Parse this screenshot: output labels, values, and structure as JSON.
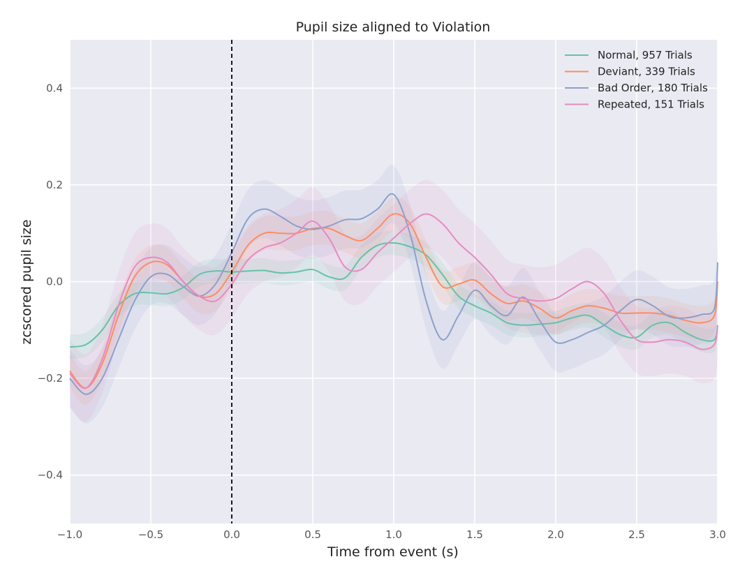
{
  "chart_data": {
    "type": "line",
    "title": "Pupil size aligned to Violation",
    "xlabel": "Time from event (s)",
    "ylabel": "zcscored pupil size",
    "xlim": [
      -1.0,
      3.0
    ],
    "ylim": [
      -0.5,
      0.5
    ],
    "x_ticks": [
      -1.0,
      -0.5,
      0.0,
      0.5,
      1.0,
      1.5,
      2.0,
      2.5,
      3.0
    ],
    "x_tick_labels": [
      "−1.0",
      "−0.5",
      "0.0",
      "0.5",
      "1.0",
      "1.5",
      "2.0",
      "2.5",
      "3.0"
    ],
    "y_ticks": [
      -0.4,
      -0.2,
      0.0,
      0.2,
      0.4
    ],
    "y_tick_labels": [
      "−0.4",
      "−0.2",
      "0.0",
      "0.2",
      "0.4"
    ],
    "grid": true,
    "legend_position": "top-right",
    "event_line": {
      "x": 0.0,
      "style": "dashed",
      "color": "#000000"
    },
    "series": [
      {
        "name": "Normal, 957 Trials",
        "color": "#66c2a5",
        "ci_halfwidth": 0.025,
        "points": [
          [
            -1.0,
            -0.135
          ],
          [
            -0.9,
            -0.13
          ],
          [
            -0.8,
            -0.1
          ],
          [
            -0.7,
            -0.05
          ],
          [
            -0.6,
            -0.025
          ],
          [
            -0.5,
            -0.023
          ],
          [
            -0.4,
            -0.025
          ],
          [
            -0.3,
            -0.012
          ],
          [
            -0.2,
            0.015
          ],
          [
            -0.1,
            0.022
          ],
          [
            0.0,
            0.02
          ],
          [
            0.1,
            0.022
          ],
          [
            0.2,
            0.023
          ],
          [
            0.3,
            0.018
          ],
          [
            0.4,
            0.02
          ],
          [
            0.5,
            0.025
          ],
          [
            0.6,
            0.01
          ],
          [
            0.7,
            0.008
          ],
          [
            0.8,
            0.05
          ],
          [
            0.9,
            0.075
          ],
          [
            1.0,
            0.08
          ],
          [
            1.1,
            0.072
          ],
          [
            1.2,
            0.055
          ],
          [
            1.3,
            0.015
          ],
          [
            1.4,
            -0.03
          ],
          [
            1.5,
            -0.05
          ],
          [
            1.6,
            -0.065
          ],
          [
            1.7,
            -0.085
          ],
          [
            1.8,
            -0.09
          ],
          [
            1.9,
            -0.088
          ],
          [
            2.0,
            -0.085
          ],
          [
            2.1,
            -0.075
          ],
          [
            2.2,
            -0.07
          ],
          [
            2.3,
            -0.09
          ],
          [
            2.4,
            -0.11
          ],
          [
            2.5,
            -0.115
          ],
          [
            2.6,
            -0.09
          ],
          [
            2.7,
            -0.085
          ],
          [
            2.8,
            -0.105
          ],
          [
            2.9,
            -0.12
          ],
          [
            2.98,
            -0.12
          ],
          [
            3.0,
            -0.09
          ]
        ]
      },
      {
        "name": "Deviant, 339 Trials",
        "color": "#fc8d62",
        "ci_halfwidth": 0.035,
        "points": [
          [
            -1.0,
            -0.185
          ],
          [
            -0.9,
            -0.22
          ],
          [
            -0.8,
            -0.17
          ],
          [
            -0.7,
            -0.07
          ],
          [
            -0.6,
            0.01
          ],
          [
            -0.5,
            0.04
          ],
          [
            -0.4,
            0.035
          ],
          [
            -0.3,
            0.0
          ],
          [
            -0.2,
            -0.03
          ],
          [
            -0.1,
            -0.025
          ],
          [
            0.0,
            0.02
          ],
          [
            0.1,
            0.075
          ],
          [
            0.2,
            0.1
          ],
          [
            0.3,
            0.1
          ],
          [
            0.4,
            0.1
          ],
          [
            0.5,
            0.11
          ],
          [
            0.6,
            0.11
          ],
          [
            0.7,
            0.095
          ],
          [
            0.8,
            0.085
          ],
          [
            0.9,
            0.11
          ],
          [
            1.0,
            0.14
          ],
          [
            1.1,
            0.12
          ],
          [
            1.2,
            0.05
          ],
          [
            1.3,
            -0.01
          ],
          [
            1.4,
            -0.005
          ],
          [
            1.5,
            0.003
          ],
          [
            1.6,
            -0.025
          ],
          [
            1.7,
            -0.045
          ],
          [
            1.8,
            -0.04
          ],
          [
            1.9,
            -0.055
          ],
          [
            2.0,
            -0.075
          ],
          [
            2.1,
            -0.06
          ],
          [
            2.2,
            -0.05
          ],
          [
            2.3,
            -0.055
          ],
          [
            2.4,
            -0.065
          ],
          [
            2.5,
            -0.065
          ],
          [
            2.6,
            -0.065
          ],
          [
            2.7,
            -0.07
          ],
          [
            2.8,
            -0.08
          ],
          [
            2.9,
            -0.085
          ],
          [
            2.98,
            -0.07
          ],
          [
            3.0,
            0.0
          ]
        ]
      },
      {
        "name": "Bad Order, 180 Trials",
        "color": "#8da0cb",
        "ci_halfwidth": 0.06,
        "points": [
          [
            -1.0,
            -0.2
          ],
          [
            -0.9,
            -0.233
          ],
          [
            -0.8,
            -0.2
          ],
          [
            -0.7,
            -0.12
          ],
          [
            -0.6,
            -0.04
          ],
          [
            -0.5,
            0.01
          ],
          [
            -0.4,
            0.015
          ],
          [
            -0.3,
            -0.01
          ],
          [
            -0.2,
            -0.03
          ],
          [
            -0.1,
            -0.005
          ],
          [
            0.0,
            0.06
          ],
          [
            0.1,
            0.13
          ],
          [
            0.2,
            0.15
          ],
          [
            0.3,
            0.135
          ],
          [
            0.4,
            0.115
          ],
          [
            0.5,
            0.108
          ],
          [
            0.6,
            0.115
          ],
          [
            0.7,
            0.128
          ],
          [
            0.8,
            0.13
          ],
          [
            0.9,
            0.15
          ],
          [
            1.0,
            0.18
          ],
          [
            1.1,
            0.1
          ],
          [
            1.2,
            -0.04
          ],
          [
            1.3,
            -0.12
          ],
          [
            1.4,
            -0.07
          ],
          [
            1.5,
            -0.018
          ],
          [
            1.6,
            -0.05
          ],
          [
            1.7,
            -0.07
          ],
          [
            1.8,
            -0.032
          ],
          [
            1.9,
            -0.08
          ],
          [
            2.0,
            -0.125
          ],
          [
            2.1,
            -0.12
          ],
          [
            2.2,
            -0.105
          ],
          [
            2.3,
            -0.09
          ],
          [
            2.4,
            -0.06
          ],
          [
            2.5,
            -0.037
          ],
          [
            2.6,
            -0.05
          ],
          [
            2.7,
            -0.072
          ],
          [
            2.8,
            -0.075
          ],
          [
            2.9,
            -0.068
          ],
          [
            2.98,
            -0.055
          ],
          [
            3.0,
            0.04
          ]
        ]
      },
      {
        "name": "Repeated, 151 Trials",
        "color": "#e78ac3",
        "ci_halfwidth": 0.07,
        "points": [
          [
            -1.0,
            -0.19
          ],
          [
            -0.9,
            -0.22
          ],
          [
            -0.8,
            -0.16
          ],
          [
            -0.7,
            -0.05
          ],
          [
            -0.6,
            0.03
          ],
          [
            -0.5,
            0.05
          ],
          [
            -0.4,
            0.04
          ],
          [
            -0.3,
            0.0
          ],
          [
            -0.2,
            -0.03
          ],
          [
            -0.1,
            -0.04
          ],
          [
            0.0,
            -0.005
          ],
          [
            0.1,
            0.045
          ],
          [
            0.2,
            0.07
          ],
          [
            0.3,
            0.08
          ],
          [
            0.4,
            0.1
          ],
          [
            0.5,
            0.125
          ],
          [
            0.6,
            0.09
          ],
          [
            0.7,
            0.03
          ],
          [
            0.8,
            0.025
          ],
          [
            0.9,
            0.06
          ],
          [
            1.0,
            0.09
          ],
          [
            1.1,
            0.12
          ],
          [
            1.2,
            0.14
          ],
          [
            1.3,
            0.12
          ],
          [
            1.4,
            0.08
          ],
          [
            1.5,
            0.05
          ],
          [
            1.6,
            0.015
          ],
          [
            1.7,
            -0.025
          ],
          [
            1.8,
            -0.035
          ],
          [
            1.9,
            -0.04
          ],
          [
            2.0,
            -0.035
          ],
          [
            2.1,
            -0.015
          ],
          [
            2.2,
            0.0
          ],
          [
            2.3,
            -0.025
          ],
          [
            2.4,
            -0.08
          ],
          [
            2.5,
            -0.12
          ],
          [
            2.6,
            -0.125
          ],
          [
            2.7,
            -0.12
          ],
          [
            2.8,
            -0.125
          ],
          [
            2.9,
            -0.14
          ],
          [
            2.98,
            -0.13
          ],
          [
            3.0,
            -0.09
          ]
        ]
      }
    ]
  }
}
